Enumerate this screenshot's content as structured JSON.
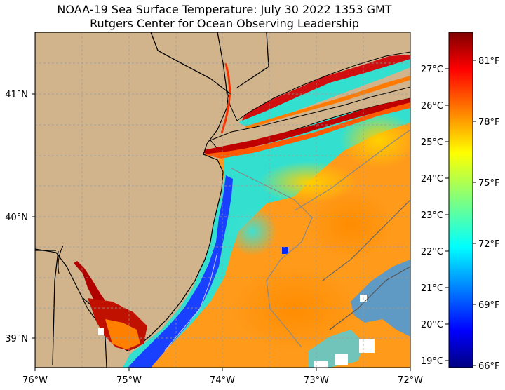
{
  "title": "NOAA-19 Sea Surface Temperature: July 30 2022 1353 GMT",
  "subtitle": "Rutgers Center for Ocean Observing Leadership",
  "map": {
    "lat_labels": [
      "41°N",
      "40°N",
      "39°N"
    ],
    "lon_labels": [
      "76°W",
      "75°W",
      "74°W",
      "73°W",
      "72°W"
    ],
    "land_color": "#d2b48c",
    "no_data_color": "#ffffff"
  },
  "colorbar": {
    "celsius_labels": [
      "27°C",
      "26°C",
      "25°C",
      "24°C",
      "23°C",
      "22°C",
      "21°C",
      "20°C",
      "19°C"
    ],
    "fahrenheit_labels": [
      "81°F",
      "78°F",
      "75°F",
      "72°F",
      "69°F",
      "66°F"
    ],
    "colormap": "jet",
    "range_c": [
      18.8,
      28.0
    ]
  },
  "chart_data": {
    "type": "heatmap",
    "title": "NOAA-19 Sea Surface Temperature: July 30 2022 1353 GMT",
    "subtitle": "Rutgers Center for Ocean Observing Leadership",
    "xlabel": "",
    "ylabel": "",
    "lon_range": [
      -76,
      -72
    ],
    "lat_range": [
      38.75,
      41.5
    ],
    "value_range_c": [
      18.8,
      28.0
    ],
    "xticks": [
      "76°W",
      "75°W",
      "74°W",
      "73°W",
      "72°W"
    ],
    "yticks": [
      "41°N",
      "40°N",
      "39°N"
    ]
  }
}
